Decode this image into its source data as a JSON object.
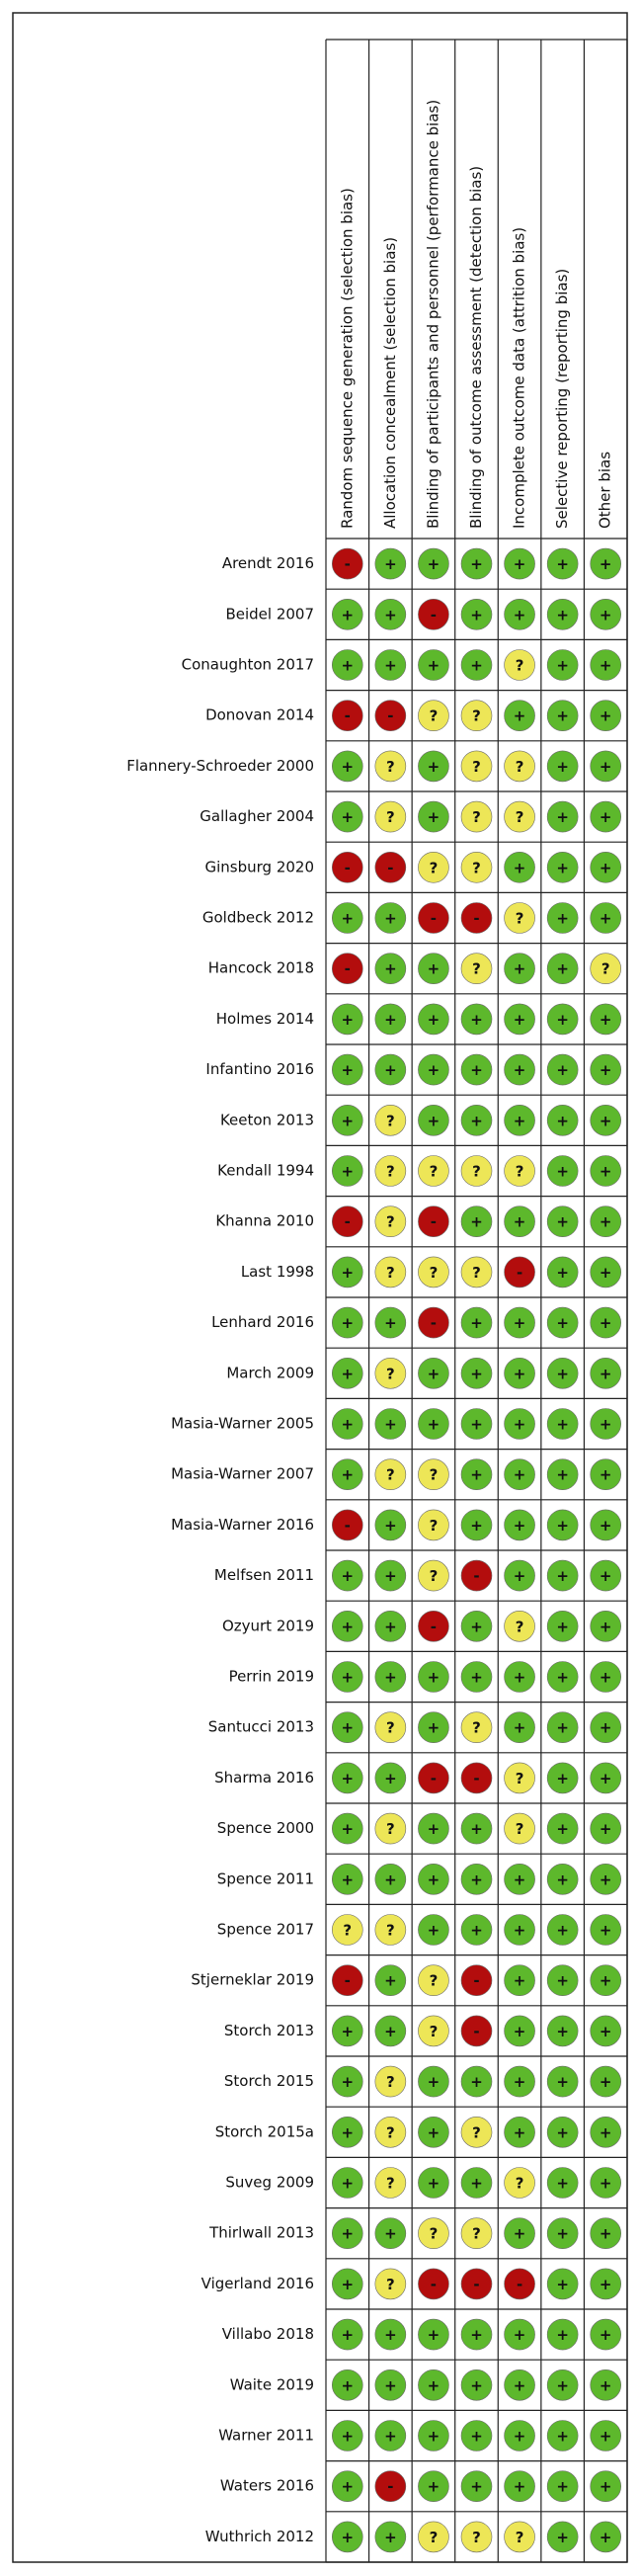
{
  "columns": [
    "Random sequence generation (selection bias)",
    "Allocation concealment (selection bias)",
    "Blinding of participants and personnel (performance bias)",
    "Blinding of outcome assessment (detection bias)",
    "Incomplete outcome data (attrition bias)",
    "Selective reporting (reporting bias)",
    "Other bias"
  ],
  "judgment_colors": {
    "+": "#5db82c",
    "?": "#ede657",
    "-": "#b30d0d"
  },
  "studies": [
    {
      "name": "Arendt 2016",
      "judgments": [
        "-",
        "+",
        "+",
        "+",
        "+",
        "+",
        "+"
      ]
    },
    {
      "name": "Beidel 2007",
      "judgments": [
        "+",
        "+",
        "-",
        "+",
        "+",
        "+",
        "+"
      ]
    },
    {
      "name": "Conaughton 2017",
      "judgments": [
        "+",
        "+",
        "+",
        "+",
        "?",
        "+",
        "+"
      ]
    },
    {
      "name": "Donovan 2014",
      "judgments": [
        "-",
        "-",
        "?",
        "?",
        "+",
        "+",
        "+"
      ]
    },
    {
      "name": "Flannery-Schroeder 2000",
      "judgments": [
        "+",
        "?",
        "+",
        "?",
        "?",
        "+",
        "+"
      ]
    },
    {
      "name": "Gallagher 2004",
      "judgments": [
        "+",
        "?",
        "+",
        "?",
        "?",
        "+",
        "+"
      ]
    },
    {
      "name": "Ginsburg 2020",
      "judgments": [
        "-",
        "-",
        "?",
        "?",
        "+",
        "+",
        "+"
      ]
    },
    {
      "name": "Goldbeck 2012",
      "judgments": [
        "+",
        "+",
        "-",
        "-",
        "?",
        "+",
        "+"
      ]
    },
    {
      "name": "Hancock 2018",
      "judgments": [
        "-",
        "+",
        "+",
        "?",
        "+",
        "+",
        "?"
      ]
    },
    {
      "name": "Holmes 2014",
      "judgments": [
        "+",
        "+",
        "+",
        "+",
        "+",
        "+",
        "+"
      ]
    },
    {
      "name": "Infantino 2016",
      "judgments": [
        "+",
        "+",
        "+",
        "+",
        "+",
        "+",
        "+"
      ]
    },
    {
      "name": "Keeton 2013",
      "judgments": [
        "+",
        "?",
        "+",
        "+",
        "+",
        "+",
        "+"
      ]
    },
    {
      "name": "Kendall 1994",
      "judgments": [
        "+",
        "?",
        "?",
        "?",
        "?",
        "+",
        "+"
      ]
    },
    {
      "name": "Khanna 2010",
      "judgments": [
        "-",
        "?",
        "-",
        "+",
        "+",
        "+",
        "+"
      ]
    },
    {
      "name": "Last 1998",
      "judgments": [
        "+",
        "?",
        "?",
        "?",
        "-",
        "+",
        "+"
      ]
    },
    {
      "name": "Lenhard 2016",
      "judgments": [
        "+",
        "+",
        "-",
        "+",
        "+",
        "+",
        "+"
      ]
    },
    {
      "name": "March 2009",
      "judgments": [
        "+",
        "?",
        "+",
        "+",
        "+",
        "+",
        "+"
      ]
    },
    {
      "name": "Masia-Warner 2005",
      "judgments": [
        "+",
        "+",
        "+",
        "+",
        "+",
        "+",
        "+"
      ]
    },
    {
      "name": "Masia-Warner 2007",
      "judgments": [
        "+",
        "?",
        "?",
        "+",
        "+",
        "+",
        "+"
      ]
    },
    {
      "name": "Masia-Warner 2016",
      "judgments": [
        "-",
        "+",
        "?",
        "+",
        "+",
        "+",
        "+"
      ]
    },
    {
      "name": "Melfsen 2011",
      "judgments": [
        "+",
        "+",
        "?",
        "-",
        "+",
        "+",
        "+"
      ]
    },
    {
      "name": "Ozyurt 2019",
      "judgments": [
        "+",
        "+",
        "-",
        "+",
        "?",
        "+",
        "+"
      ]
    },
    {
      "name": "Perrin 2019",
      "judgments": [
        "+",
        "+",
        "+",
        "+",
        "+",
        "+",
        "+"
      ]
    },
    {
      "name": "Santucci 2013",
      "judgments": [
        "+",
        "?",
        "+",
        "?",
        "+",
        "+",
        "+"
      ]
    },
    {
      "name": "Sharma 2016",
      "judgments": [
        "+",
        "+",
        "-",
        "-",
        "?",
        "+",
        "+"
      ]
    },
    {
      "name": "Spence 2000",
      "judgments": [
        "+",
        "?",
        "+",
        "+",
        "?",
        "+",
        "+"
      ]
    },
    {
      "name": "Spence 2011",
      "judgments": [
        "+",
        "+",
        "+",
        "+",
        "+",
        "+",
        "+"
      ]
    },
    {
      "name": "Spence 2017",
      "judgments": [
        "?",
        "?",
        "+",
        "+",
        "+",
        "+",
        "+"
      ]
    },
    {
      "name": "Stjerneklar 2019",
      "judgments": [
        "-",
        "+",
        "?",
        "-",
        "+",
        "+",
        "+"
      ]
    },
    {
      "name": "Storch 2013",
      "judgments": [
        "+",
        "+",
        "?",
        "-",
        "+",
        "+",
        "+"
      ]
    },
    {
      "name": "Storch 2015",
      "judgments": [
        "+",
        "?",
        "+",
        "+",
        "+",
        "+",
        "+"
      ]
    },
    {
      "name": "Storch 2015a",
      "judgments": [
        "+",
        "?",
        "+",
        "?",
        "+",
        "+",
        "+"
      ]
    },
    {
      "name": "Suveg 2009",
      "judgments": [
        "+",
        "?",
        "+",
        "+",
        "?",
        "+",
        "+"
      ]
    },
    {
      "name": "Thirlwall 2013",
      "judgments": [
        "+",
        "+",
        "?",
        "?",
        "+",
        "+",
        "+"
      ]
    },
    {
      "name": "Vigerland 2016",
      "judgments": [
        "+",
        "?",
        "-",
        "-",
        "-",
        "+",
        "+"
      ]
    },
    {
      "name": "Villabo 2018",
      "judgments": [
        "+",
        "+",
        "+",
        "+",
        "+",
        "+",
        "+"
      ]
    },
    {
      "name": "Waite 2019",
      "judgments": [
        "+",
        "+",
        "+",
        "+",
        "+",
        "+",
        "+"
      ]
    },
    {
      "name": "Warner 2011",
      "judgments": [
        "+",
        "+",
        "+",
        "+",
        "+",
        "+",
        "+"
      ]
    },
    {
      "name": "Waters 2016",
      "judgments": [
        "+",
        "-",
        "+",
        "+",
        "+",
        "+",
        "+"
      ]
    },
    {
      "name": "Wuthrich 2012",
      "judgments": [
        "+",
        "+",
        "?",
        "?",
        "?",
        "+",
        "+"
      ]
    }
  ]
}
